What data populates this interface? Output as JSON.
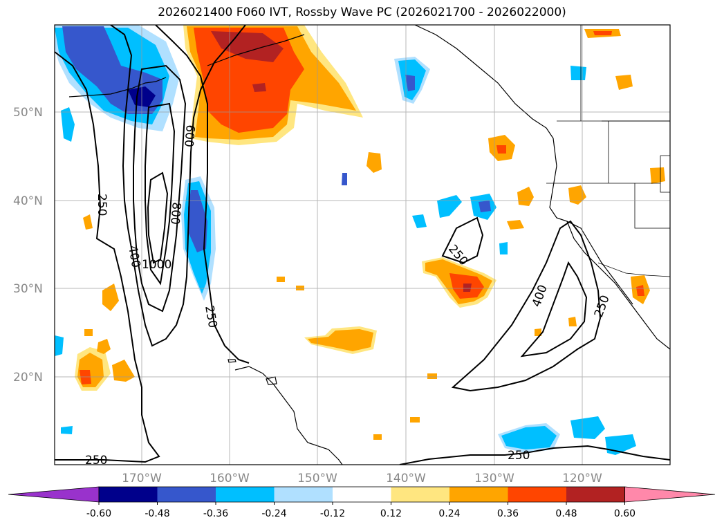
{
  "title": "2026021400 F060 IVT, Rossby Wave PC (2026021700 - 2026022000)",
  "map": {
    "lat_labels": [
      "50°N",
      "40°N",
      "30°N",
      "20°N"
    ],
    "lon_labels": [
      "170°W",
      "160°W",
      "150°W",
      "140°W",
      "130°W",
      "120°W"
    ],
    "contour_labels": [
      "250",
      "400",
      "600",
      "800",
      "1000",
      "250",
      "250",
      "250",
      "250",
      "400",
      "250"
    ]
  },
  "colorbar": {
    "tick_labels": [
      "-0.60",
      "-0.48",
      "-0.36",
      "-0.24",
      "-0.12",
      "0.12",
      "0.24",
      "0.36",
      "0.48",
      "0.60"
    ],
    "colors": [
      "#9932cc",
      "#00008b",
      "#3657cc",
      "#00bfff",
      "#b0e0ff",
      "#ffffff",
      "#ffe680",
      "#ffa500",
      "#ff4500",
      "#b22222",
      "#ff88aa"
    ]
  }
}
